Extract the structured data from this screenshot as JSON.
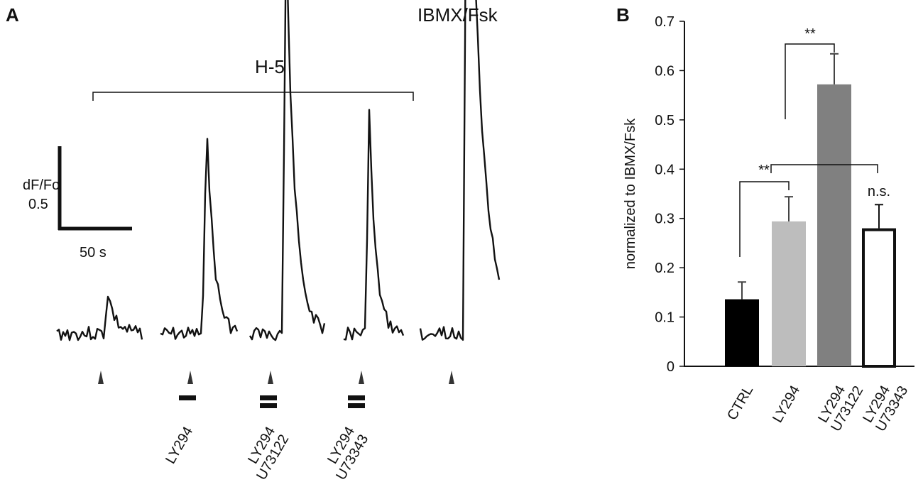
{
  "panel_a": {
    "letter": "A",
    "bracket_label": "H-5",
    "top_label": "IBMX/Fsk",
    "scale_y_label": "dF/Fo",
    "scale_y_value": "0.5",
    "scale_x_label": "50 s",
    "conditions": [
      {
        "lines": [],
        "bars": 0
      },
      {
        "lines": [
          "LY294"
        ],
        "bars": 1
      },
      {
        "lines": [
          "LY294",
          "U73122"
        ],
        "bars": 2
      },
      {
        "lines": [
          "LY294",
          "U73343"
        ],
        "bars": 2
      },
      {
        "lines": [],
        "bars": 0
      }
    ],
    "traces": [
      {
        "baseline": 0.0,
        "peak": 0.25
      },
      {
        "baseline": 0.0,
        "peak": 1.35
      },
      {
        "baseline": 0.0,
        "peak": 2.45
      },
      {
        "baseline": 0.0,
        "peak": 1.35
      },
      {
        "baseline": 0.0,
        "peak": 4.05
      }
    ]
  },
  "chart_data": {
    "type": "bar",
    "panel_letter": "B",
    "ylabel": "normalized to IBMX/Fsk",
    "xlabel": "",
    "ylim": [
      0,
      0.7
    ],
    "yticks": [
      "0",
      "0.1",
      "0.2",
      "0.3",
      "0.4",
      "0.5",
      "0.6",
      "0.7"
    ],
    "categories": [
      {
        "lines": [
          "CTRL"
        ]
      },
      {
        "lines": [
          "LY294"
        ]
      },
      {
        "lines": [
          "LY294",
          "U73122"
        ]
      },
      {
        "lines": [
          "LY294",
          "U73343"
        ]
      }
    ],
    "values": [
      0.136,
      0.294,
      0.572,
      0.28
    ],
    "errors": [
      0.035,
      0.05,
      0.062,
      0.048
    ],
    "colors": [
      "#000000",
      "#bdbdbd",
      "#808080",
      "#ffffff"
    ],
    "significance": [
      {
        "from": 0,
        "to": 1,
        "label": "**"
      },
      {
        "from": 1,
        "to": 2,
        "label": "**"
      },
      {
        "from": 1,
        "to": 3,
        "label": "n.s."
      }
    ]
  }
}
